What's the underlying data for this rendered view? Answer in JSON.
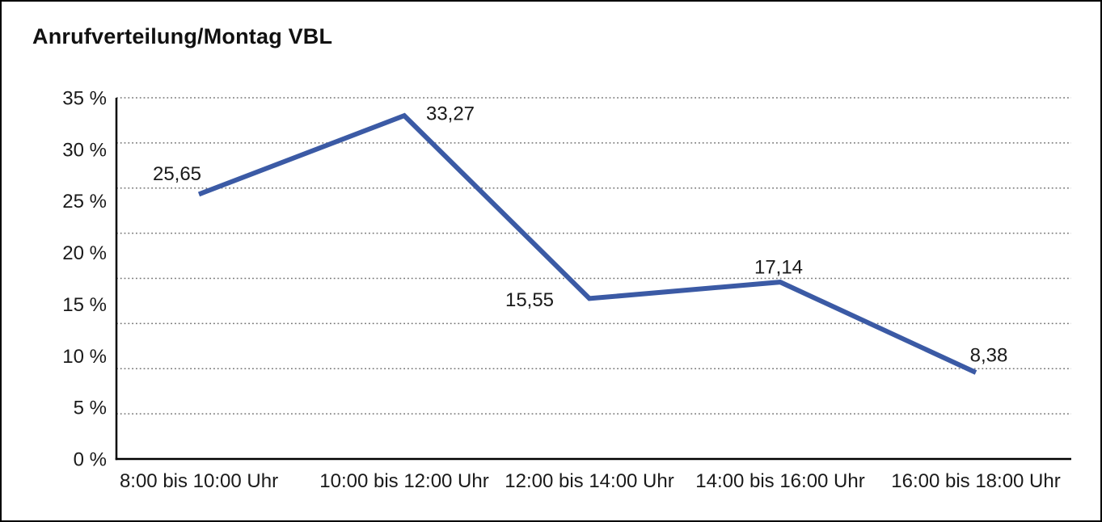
{
  "title": "Anrufverteilung/Montag VBL",
  "chart_data": {
    "type": "line",
    "title": "Anrufverteilung/Montag VBL",
    "categories": [
      "8:00 bis 10:00 Uhr",
      "10:00 bis 12:00 Uhr",
      "12:00 bis 14:00 Uhr",
      "14:00 bis 16:00 Uhr",
      "16:00 bis 18:00 Uhr"
    ],
    "values": [
      25.65,
      33.27,
      15.55,
      17.14,
      8.38
    ],
    "point_labels": [
      "25,65",
      "33,27",
      "15,55",
      "17,14",
      "8,38"
    ],
    "ytick_values": [
      0,
      5,
      10,
      15,
      20,
      25,
      30,
      35
    ],
    "ytick_labels": [
      "0 %",
      "5 %",
      "10 %",
      "15 %",
      "20 %",
      "25 %",
      "30 %",
      "35 %"
    ],
    "ylim": [
      0,
      35
    ],
    "xlabel": "",
    "ylabel": "",
    "grid": "horizontal-dotted",
    "grid_divisions": 8,
    "legend": "none",
    "line_color": "#3B5AA5",
    "axis_color": "#000000",
    "grid_color": "#737373",
    "text_color": "#1a1a1a",
    "background": "#FFFFFF",
    "border_color": "#000000"
  }
}
